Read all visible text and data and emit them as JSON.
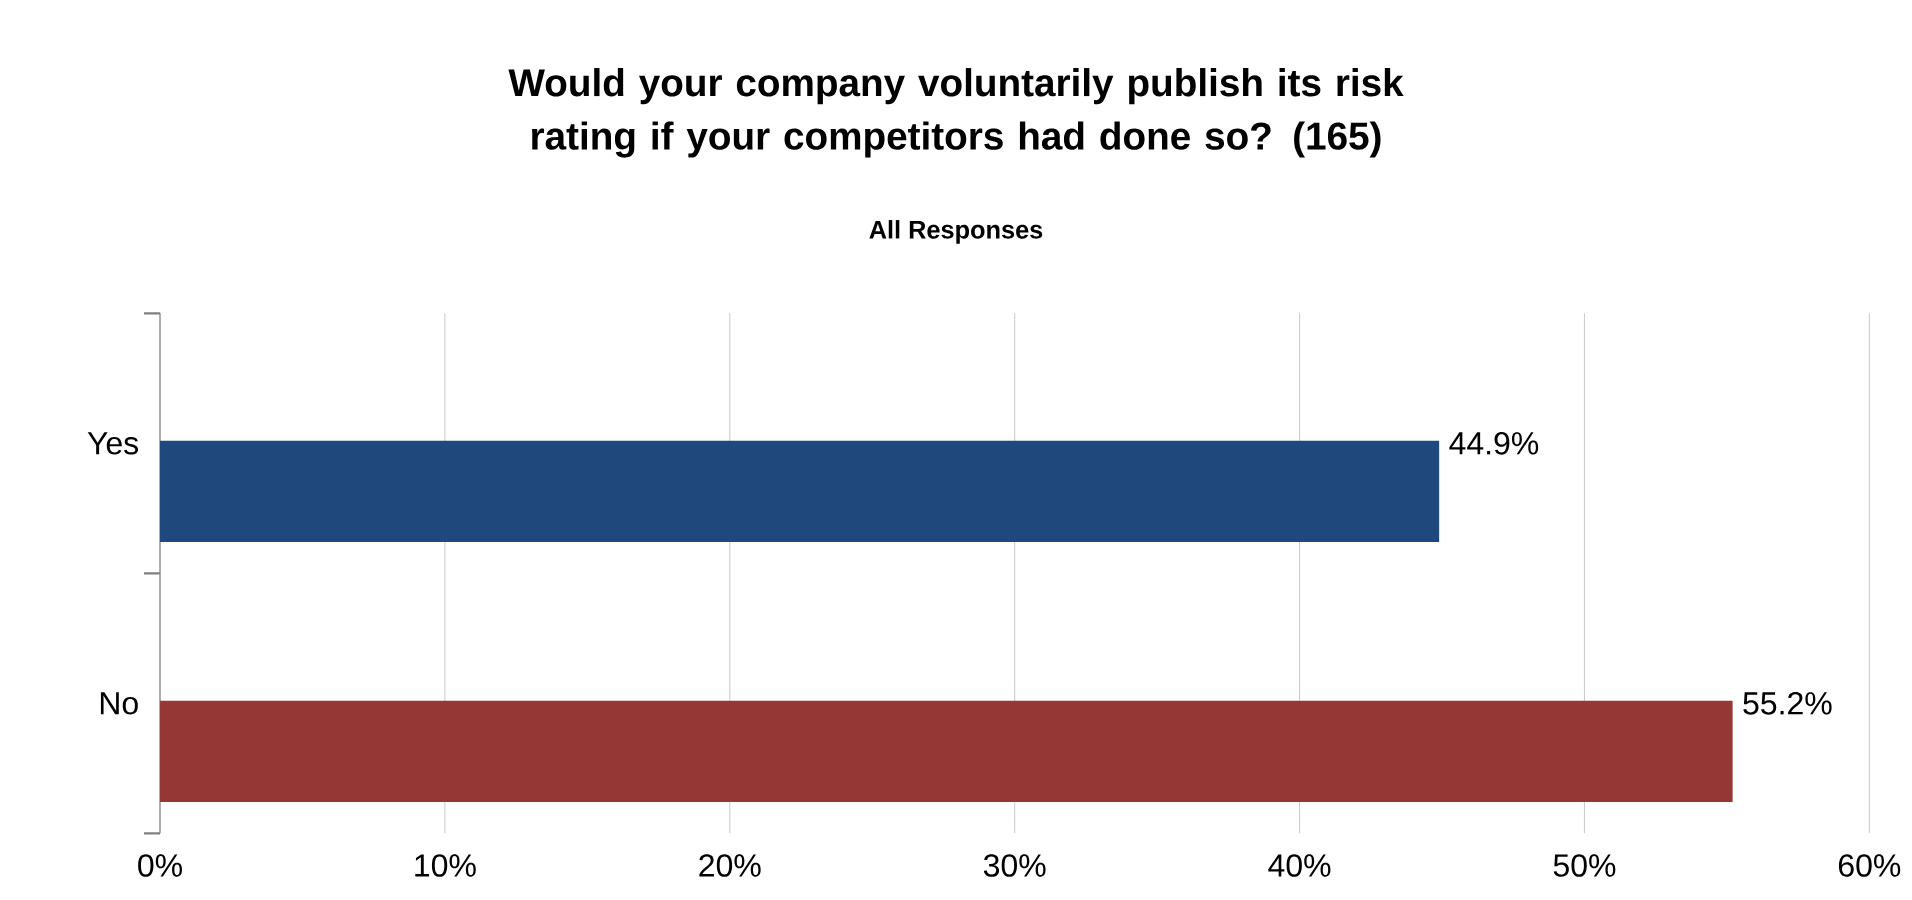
{
  "chart_data": {
    "type": "bar",
    "orientation": "horizontal",
    "title": "Would your company voluntarily publish its risk rating if your competitors had done so?  (165)",
    "subtitle": "All Responses",
    "categories": [
      "Yes",
      "No"
    ],
    "values": [
      44.9,
      55.2
    ],
    "colors": [
      "#1f497d",
      "#953735"
    ],
    "value_labels": [
      "44.9%",
      "55.2%"
    ],
    "xlim": [
      0,
      60
    ],
    "xticks": [
      {
        "value": 0,
        "label": "0%"
      },
      {
        "value": 10,
        "label": "10%"
      },
      {
        "value": 20,
        "label": "20%"
      },
      {
        "value": 30,
        "label": "30%"
      },
      {
        "value": 40,
        "label": "40%"
      },
      {
        "value": 50,
        "label": "50%"
      },
      {
        "value": 60,
        "label": "60%"
      }
    ],
    "grid": "x"
  }
}
